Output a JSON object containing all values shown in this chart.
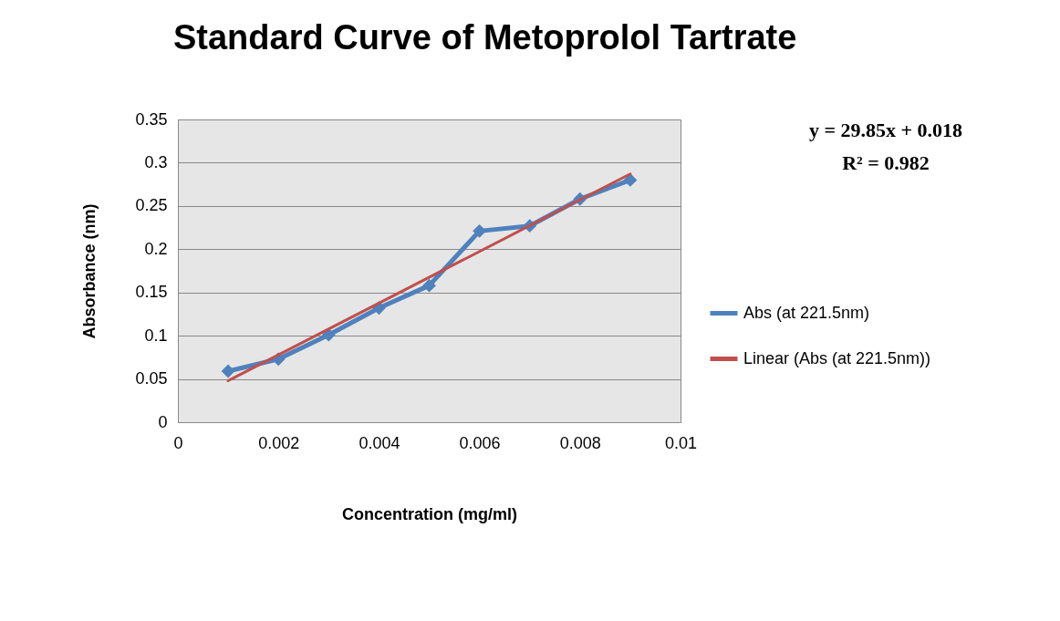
{
  "chart_data": {
    "type": "line",
    "title": "Standard Curve of Metoprolol Tartrate",
    "xlabel": "Concentration (mg/ml)",
    "ylabel": "Absorbance (nm)",
    "x": [
      0.001,
      0.002,
      0.003,
      0.004,
      0.005,
      0.006,
      0.007,
      0.008,
      0.009
    ],
    "series": [
      {
        "name": "Abs (at 221.5nm)",
        "color": "#4f81bd",
        "values": [
          0.059,
          0.073,
          0.101,
          0.132,
          0.158,
          0.221,
          0.227,
          0.258,
          0.28
        ]
      },
      {
        "name": "Linear (Abs (at 221.5nm))",
        "color": "#c0504d",
        "type": "line",
        "marker": "none",
        "x": [
          0.001,
          0.009
        ],
        "values": [
          0.048,
          0.287
        ]
      }
    ],
    "xlim": [
      0,
      0.01
    ],
    "xticks": [
      0,
      0.002,
      0.004,
      0.006,
      0.008,
      0.01
    ],
    "ylim": [
      0,
      0.35
    ],
    "yticks": [
      0,
      0.05,
      0.1,
      0.15,
      0.2,
      0.25,
      0.3,
      0.35
    ],
    "grid": "y",
    "legend": "right",
    "marker": "diamond",
    "annotations": [
      "y = 29.85x + 0.018",
      "R² = 0.982"
    ]
  }
}
